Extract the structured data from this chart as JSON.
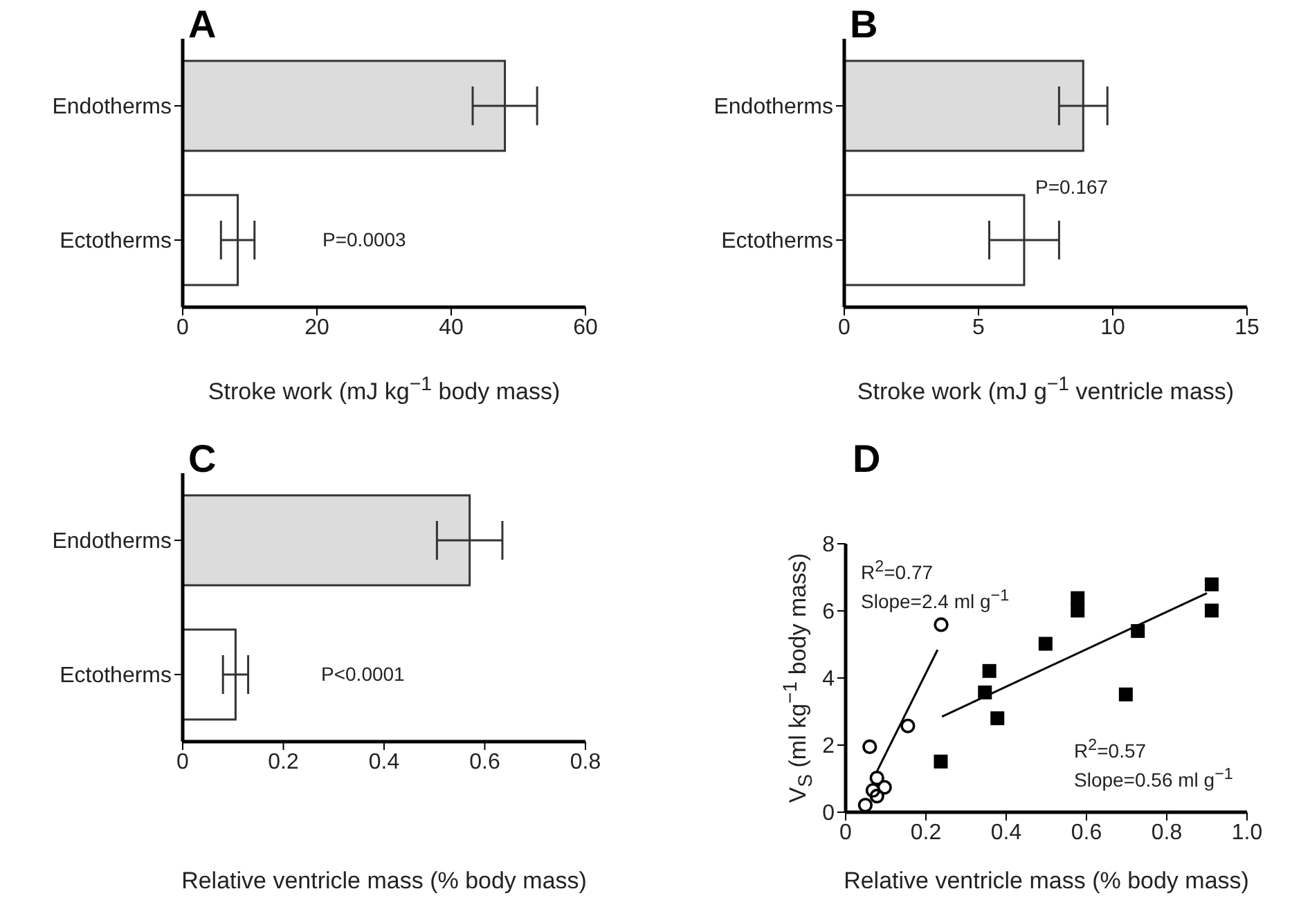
{
  "chart_data": [
    {
      "type": "bar",
      "orientation": "horizontal",
      "title": "A",
      "categories": [
        "Endotherms",
        "Ectotherms"
      ],
      "values": [
        48.0,
        8.2
      ],
      "errors": [
        4.8,
        2.5
      ],
      "colors": [
        "#dcdcdc",
        "#ffffff"
      ],
      "xlim": [
        0,
        60
      ],
      "xticks": [
        0,
        20,
        40,
        60
      ],
      "xlabel": "Stroke work (mJ kg$^{−1}$ body mass)",
      "annotations": [
        "P=0.0003"
      ]
    },
    {
      "type": "bar",
      "orientation": "horizontal",
      "title": "B",
      "categories": [
        "Endotherms",
        "Ectotherms"
      ],
      "values": [
        8.9,
        6.7
      ],
      "errors": [
        0.9,
        1.3
      ],
      "colors": [
        "#dcdcdc",
        "#ffffff"
      ],
      "xlim": [
        0,
        15
      ],
      "xticks": [
        0,
        5,
        10,
        15
      ],
      "xlabel": "Stroke work (mJ g$^{−1}$ ventricle mass)",
      "annotations": [
        "P=0.167"
      ]
    },
    {
      "type": "bar",
      "orientation": "horizontal",
      "title": "C",
      "categories": [
        "Endotherms",
        "Ectotherms"
      ],
      "values": [
        0.57,
        0.105
      ],
      "errors": [
        0.065,
        0.025
      ],
      "colors": [
        "#dcdcdc",
        "#ffffff"
      ],
      "xlim": [
        0,
        0.8
      ],
      "xticks": [
        0,
        0.2,
        0.4,
        0.6,
        0.8
      ],
      "xlabel": "Relative ventricle mass (% body mass)",
      "annotations": [
        "P<0.0001"
      ]
    },
    {
      "type": "scatter",
      "title": "D",
      "xlabel": "Relative ventricle mass (% body mass)",
      "ylabel": "V$_{S}$ (ml kg$^{−1}$ body mass)",
      "xlim": [
        0,
        1
      ],
      "xticks": [
        0,
        0.2,
        0.4,
        0.6,
        0.8,
        {
          "value": 1,
          "label": "1.0"
        }
      ],
      "ylim": [
        0,
        8
      ],
      "yticks": [
        0,
        2,
        4,
        6,
        8
      ],
      "annotations": [
        "R$^{2}$=0.77",
        "Slope=2.4 ml g$^{−1}$",
        "R$^{2}$=0.57",
        "Slope=0.56 ml g$^{−1}$"
      ],
      "series": [
        {
          "type": "scatter",
          "marker": "circle",
          "color": "#000000",
          "x": [
            0.238,
            0.155,
            0.06,
            0.078,
            0.097,
            0.068,
            0.078,
            0.049
          ],
          "values": [
            5.59,
            2.57,
            1.95,
            1.02,
            0.74,
            0.65,
            0.48,
            0.21
          ]
        },
        {
          "type": "scatter",
          "marker": "square",
          "color": "#000000",
          "x": [
            0.912,
            0.912,
            0.578,
            0.578,
            0.728,
            0.498,
            0.358,
            0.347,
            0.698,
            0.378,
            0.237
          ],
          "values": [
            6.79,
            6.01,
            6.38,
            6.01,
            5.4,
            5.02,
            4.21,
            3.57,
            3.51,
            2.8,
            1.51
          ]
        },
        {
          "type": "line",
          "color": "#000000",
          "x": [
            0.076,
            0.229
          ],
          "values": [
            1.17,
            4.84
          ]
        },
        {
          "type": "line",
          "color": "#000000",
          "x": [
            0.24,
            0.9
          ],
          "values": [
            2.85,
            6.53
          ]
        }
      ]
    }
  ]
}
